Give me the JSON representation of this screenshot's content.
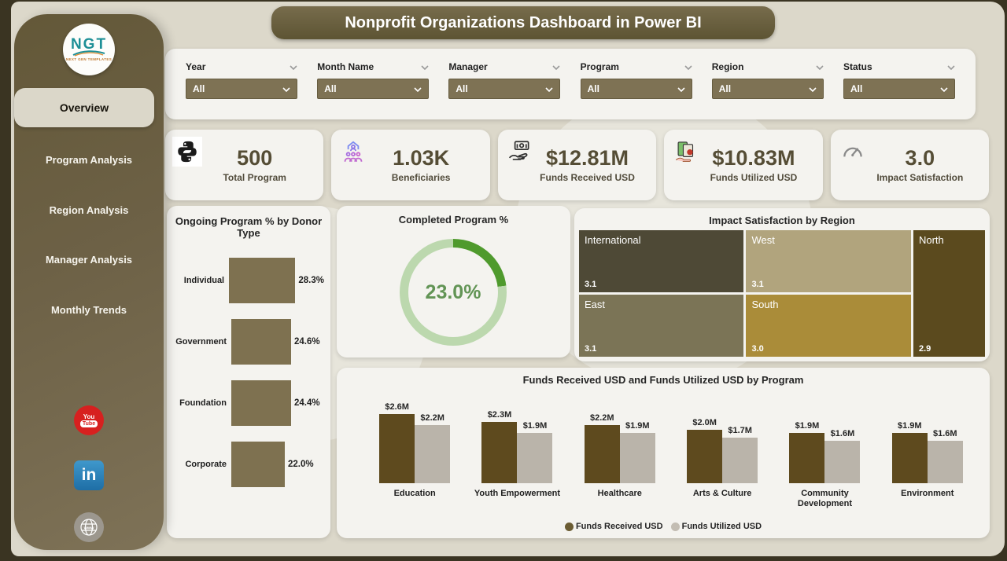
{
  "title": "Nonprofit Organizations Dashboard in Power BI",
  "logo": {
    "text": "NGT",
    "subtext": "NEXT GEN TEMPLATES"
  },
  "sidebar": {
    "items": [
      {
        "label": "Overview",
        "active": true
      },
      {
        "label": "Program Analysis",
        "active": false
      },
      {
        "label": "Region Analysis",
        "active": false
      },
      {
        "label": "Manager Analysis",
        "active": false
      },
      {
        "label": "Monthly Trends",
        "active": false
      }
    ]
  },
  "social": [
    {
      "name": "youtube-icon"
    },
    {
      "name": "linkedin-icon"
    },
    {
      "name": "website-icon"
    }
  ],
  "filters": [
    {
      "label": "Year",
      "value": "All"
    },
    {
      "label": "Month Name",
      "value": "All"
    },
    {
      "label": "Manager",
      "value": "All"
    },
    {
      "label": "Program",
      "value": "All"
    },
    {
      "label": "Region",
      "value": "All"
    },
    {
      "label": "Status",
      "value": "All"
    }
  ],
  "kpis": [
    {
      "icon": "program-icon",
      "value": "500",
      "label": "Total Program"
    },
    {
      "icon": "beneficiaries-icon",
      "value": "1.03K",
      "label": "Beneficiaries"
    },
    {
      "icon": "funds-received-icon",
      "value": "$12.81M",
      "label": "Funds Received USD"
    },
    {
      "icon": "funds-utilized-icon",
      "value": "$10.83M",
      "label": "Funds Utilized USD"
    },
    {
      "icon": "gauge-icon",
      "value": "3.0",
      "label": "Impact Satisfaction"
    }
  ],
  "chart_data": [
    {
      "type": "bar",
      "orientation": "horizontal",
      "title": "Ongoing Program % by Donor Type",
      "categories": [
        "Individual",
        "Government",
        "Foundation",
        "Corporate"
      ],
      "values": [
        28.3,
        24.6,
        24.4,
        22.0
      ],
      "labels": [
        "28.3%",
        "24.6%",
        "24.4%",
        "22.0%"
      ],
      "bar_color": "#7e7150",
      "xlim": [
        0,
        30
      ]
    },
    {
      "type": "donut",
      "title": "Completed Program %",
      "value": 23.0,
      "label": "23.0%",
      "colors": {
        "filled": "#4f9a2d",
        "track": "#bcd8ae",
        "text": "#629455"
      }
    },
    {
      "type": "treemap",
      "title": "Impact Satisfaction by Region",
      "cells": [
        {
          "name": "International",
          "value": "3.1",
          "color": "#4e4936"
        },
        {
          "name": "West",
          "value": "3.1",
          "color": "#b1a47d"
        },
        {
          "name": "North",
          "value": "2.9",
          "color": "#5b4a1e"
        },
        {
          "name": "East",
          "value": "3.1",
          "color": "#7b7456"
        },
        {
          "name": "South",
          "value": "3.0",
          "color": "#aa8c39"
        }
      ]
    },
    {
      "type": "bar",
      "title": "Funds Received USD and Funds Utilized USD by Program",
      "categories": [
        "Education",
        "Youth Empowerment",
        "Healthcare",
        "Arts & Culture",
        "Community Development",
        "Environment"
      ],
      "series": [
        {
          "name": "Funds Received USD",
          "color": "#5e4a1e",
          "dot_color": "#6b5c33",
          "values": [
            2.6,
            2.3,
            2.2,
            2.0,
            1.9,
            1.9
          ],
          "labels": [
            "$2.6M",
            "$2.3M",
            "$2.2M",
            "$2.0M",
            "$1.9M",
            "$1.9M"
          ]
        },
        {
          "name": "Funds Utilized USD",
          "color": "#bab4aa",
          "dot_color": "#c3bdb3",
          "values": [
            2.2,
            1.9,
            1.9,
            1.7,
            1.6,
            1.6
          ],
          "labels": [
            "$2.2M",
            "$1.9M",
            "$1.9M",
            "$1.7M",
            "$1.6M",
            "$1.6M"
          ]
        }
      ],
      "ylim": [
        0,
        2.6
      ],
      "legend_position": "bottom"
    }
  ]
}
